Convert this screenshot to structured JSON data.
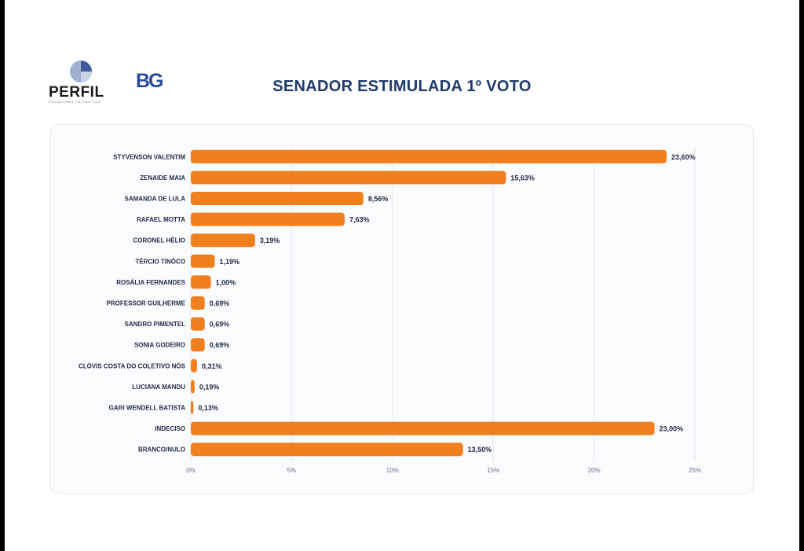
{
  "header": {
    "title": "SENADOR ESTIMULADA 1º VOTO",
    "logo_perfil": "PERFIL",
    "logo_perfil_tagline": "PESQUISAS FEITAS FAZ",
    "logo_bg": "BG"
  },
  "colors": {
    "bar": "#f07f1e",
    "title": "#1f3a6b",
    "label": "#1f2a44",
    "grid": "#e4e7ee"
  },
  "chart_data": {
    "type": "bar",
    "orientation": "horizontal",
    "title": "SENADOR ESTIMULADA 1º VOTO",
    "xlabel": "",
    "ylabel": "",
    "xlim": [
      0,
      25
    ],
    "grid": true,
    "categories": [
      "STYVENSON VALENTIM",
      "ZENAIDE MAIA",
      "SAMANDA DE LULA",
      "RAFAEL MOTTA",
      "CORONEL HÉLIO",
      "TÉRCIO TINÔCO",
      "ROSÁLIA FERNANDES",
      "PROFESSOR GUILHERME",
      "SANDRO PIMENTEL",
      "SONIA GODEIRO",
      "CLÓVIS COSTA DO COLETIVO NÓS",
      "LUCIANA MANDU",
      "GARI WENDELL BATISTA",
      "INDECISO",
      "BRANCO/NULO"
    ],
    "values": [
      23.6,
      15.63,
      8.56,
      7.63,
      3.19,
      1.19,
      1.0,
      0.69,
      0.69,
      0.69,
      0.31,
      0.19,
      0.13,
      23.0,
      13.5
    ],
    "value_labels": [
      "23,60%",
      "15,63%",
      "8,56%",
      "7,63%",
      "3,19%",
      "1,19%",
      "1,00%",
      "0,69%",
      "0,69%",
      "0,69%",
      "0,31%",
      "0,19%",
      "0,13%",
      "23,00%",
      "13,50%"
    ],
    "ticks": [
      0,
      5,
      10,
      15,
      20,
      25
    ],
    "tick_labels": [
      "0%",
      "5%",
      "10%",
      "15%",
      "20%",
      "25%"
    ]
  }
}
